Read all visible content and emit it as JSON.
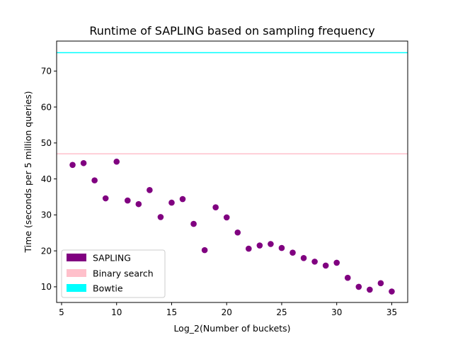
{
  "chart_data": {
    "type": "scatter",
    "title": "Runtime of SAPLING based on sampling frequency",
    "xlabel": "Log_2(Number of buckets)",
    "ylabel": "Time (seconds per 5 million queries)",
    "xlim": [
      4.55,
      36.45
    ],
    "ylim": [
      5.65,
      78.33
    ],
    "xticks": [
      5,
      10,
      15,
      20,
      25,
      30,
      35
    ],
    "yticks": [
      10,
      20,
      30,
      40,
      50,
      60,
      70
    ],
    "grid": false,
    "legend_position": "bottom-left",
    "series": [
      {
        "name": "SAPLING",
        "kind": "points",
        "color": "#800080",
        "x": [
          6,
          7,
          8,
          9,
          10,
          11,
          12,
          13,
          14,
          15,
          16,
          17,
          18,
          19,
          20,
          21,
          22,
          23,
          24,
          25,
          26,
          27,
          28,
          29,
          30,
          31,
          32,
          33,
          34,
          35
        ],
        "y": [
          43.9,
          44.4,
          39.6,
          34.6,
          44.8,
          34.0,
          33.0,
          36.9,
          29.4,
          33.4,
          34.4,
          27.5,
          20.2,
          32.1,
          29.3,
          25.1,
          20.6,
          21.5,
          21.9,
          20.8,
          19.5,
          18.0,
          17.0,
          15.9,
          16.7,
          12.5,
          10.0,
          9.2,
          11.0,
          8.7
        ]
      },
      {
        "name": "Binary search",
        "kind": "hline",
        "color": "#ffc0cb",
        "y": 47.0
      },
      {
        "name": "Bowtie",
        "kind": "hline",
        "color": "#00ffff",
        "y": 75.1
      }
    ]
  }
}
